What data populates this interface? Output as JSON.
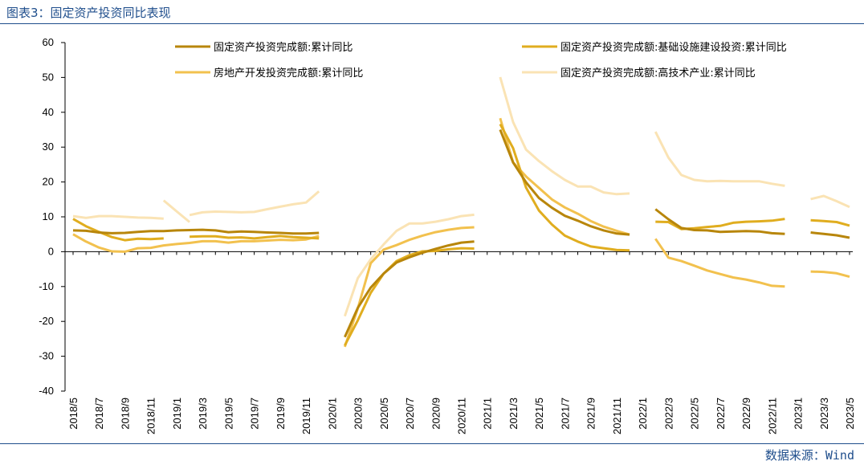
{
  "header": {
    "title": "图表3：固定资产投资同比表现"
  },
  "footer": {
    "source": "数据来源：Wind"
  },
  "chart_data": {
    "type": "line",
    "ylim": [
      -40,
      60
    ],
    "yticks": [
      -40,
      -30,
      -20,
      -10,
      0,
      10,
      20,
      30,
      40,
      50,
      60
    ],
    "x": [
      "2018/5",
      "2018/6",
      "2018/7",
      "2018/8",
      "2018/9",
      "2018/10",
      "2018/11",
      "2018/12",
      "2019/1",
      "2019/2",
      "2019/3",
      "2019/4",
      "2019/5",
      "2019/6",
      "2019/7",
      "2019/8",
      "2019/9",
      "2019/10",
      "2019/11",
      "2019/12",
      "2020/1",
      "2020/2",
      "2020/3",
      "2020/4",
      "2020/5",
      "2020/6",
      "2020/7",
      "2020/8",
      "2020/9",
      "2020/10",
      "2020/11",
      "2020/12",
      "2021/1",
      "2021/2",
      "2021/3",
      "2021/4",
      "2021/5",
      "2021/6",
      "2021/7",
      "2021/8",
      "2021/9",
      "2021/10",
      "2021/11",
      "2021/12",
      "2022/1",
      "2022/2",
      "2022/3",
      "2022/4",
      "2022/5",
      "2022/6",
      "2022/7",
      "2022/8",
      "2022/9",
      "2022/10",
      "2022/11",
      "2022/12",
      "2023/1",
      "2023/2",
      "2023/3",
      "2023/4",
      "2023/5"
    ],
    "xtick_labels": [
      "2018/5",
      "2018/7",
      "2018/9",
      "2018/11",
      "2019/1",
      "2019/3",
      "2019/5",
      "2019/7",
      "2019/9",
      "2019/11",
      "2020/1",
      "2020/3",
      "2020/5",
      "2020/7",
      "2020/9",
      "2020/11",
      "2021/1",
      "2021/3",
      "2021/5",
      "2021/7",
      "2021/9",
      "2021/11",
      "2022/1",
      "2022/3",
      "2022/5",
      "2022/7",
      "2022/9",
      "2022/11",
      "2023/1",
      "2023/3",
      "2023/5"
    ],
    "series": [
      {
        "name": "固定资产投资完成额:累计同比",
        "color": "#b8860b",
        "width": 3,
        "values": [
          6.1,
          6.0,
          5.5,
          5.3,
          5.4,
          5.7,
          5.9,
          5.9,
          6.1,
          6.2,
          6.3,
          6.1,
          5.6,
          5.8,
          5.7,
          5.5,
          5.4,
          5.2,
          5.2,
          5.4,
          null,
          -24.5,
          -16.1,
          -10.3,
          -6.3,
          -3.1,
          -1.6,
          -0.3,
          0.8,
          1.8,
          2.6,
          2.9,
          null,
          35.0,
          25.6,
          19.9,
          15.4,
          12.6,
          10.3,
          8.9,
          7.3,
          6.1,
          5.2,
          4.9,
          null,
          12.2,
          9.3,
          6.8,
          6.2,
          6.1,
          5.7,
          5.8,
          5.9,
          5.8,
          5.3,
          5.1,
          null,
          5.5,
          5.1,
          4.7,
          4.0
        ]
      },
      {
        "name": "固定资产投资完成额:基础设施建设投资:累计同比",
        "color": "#e0ad1f",
        "width": 3,
        "values": [
          9.4,
          7.3,
          5.7,
          4.2,
          3.3,
          3.7,
          3.6,
          3.8,
          null,
          4.3,
          4.4,
          4.4,
          4.0,
          4.1,
          3.8,
          4.2,
          4.5,
          4.2,
          4.0,
          3.8,
          null,
          -26.9,
          -19.7,
          -11.8,
          -6.3,
          -2.7,
          -1.0,
          0.1,
          0.2,
          0.7,
          1.0,
          0.9,
          null,
          36.6,
          29.7,
          18.4,
          11.8,
          7.8,
          4.6,
          2.9,
          1.5,
          1.0,
          0.5,
          0.4,
          null,
          8.6,
          8.5,
          6.5,
          6.7,
          7.1,
          7.4,
          8.3,
          8.6,
          8.7,
          8.9,
          9.4,
          null,
          9.0,
          8.8,
          8.5,
          7.5
        ]
      },
      {
        "name": "房地产开发投资完成额:累计同比",
        "color": "#f2c14e",
        "width": 3,
        "values": [
          5.0,
          2.9,
          1.2,
          0.1,
          0.0,
          1.0,
          1.1,
          1.8,
          2.2,
          2.5,
          3.0,
          3.0,
          2.6,
          3.0,
          3.0,
          3.2,
          3.4,
          3.3,
          3.5,
          4.5,
          null,
          -27.3,
          -16.3,
          -3.3,
          0.6,
          1.9,
          3.4,
          4.6,
          5.6,
          6.3,
          6.8,
          7.0,
          null,
          38.3,
          25.6,
          21.6,
          18.3,
          15.0,
          12.7,
          10.9,
          8.8,
          7.2,
          6.0,
          4.9,
          null,
          3.7,
          -1.7,
          -2.7,
          -4.0,
          -5.4,
          -6.4,
          -7.4,
          -8.0,
          -8.8,
          -9.8,
          -10.0,
          null,
          -5.7,
          -5.8,
          -6.2,
          -7.2
        ]
      },
      {
        "name": "固定资产投资完成额:高技术产业:累计同比",
        "color": "#fae3b4",
        "width": 3,
        "values": [
          10.2,
          9.7,
          10.2,
          10.2,
          10.0,
          9.8,
          9.7,
          9.5,
          null,
          10.5,
          11.3,
          11.5,
          11.4,
          11.3,
          11.4,
          12.2,
          12.9,
          13.6,
          14.1,
          17.3,
          null,
          -18.5,
          -7.6,
          -2.2,
          2.1,
          6.0,
          8.1,
          8.1,
          8.6,
          9.3,
          10.2,
          10.6,
          null,
          50.1,
          37.2,
          29.3,
          26.0,
          23.1,
          20.6,
          18.7,
          18.7,
          17.0,
          16.5,
          16.7,
          null,
          34.4,
          27.0,
          22.0,
          20.6,
          20.2,
          20.3,
          20.2,
          20.2,
          20.2,
          19.5,
          18.9,
          null,
          15.1,
          16.0,
          14.5,
          12.8
        ]
      },
      {
        "name": "",
        "color": "#fae3b4",
        "width": 3,
        "values": [
          null,
          null,
          null,
          null,
          null,
          null,
          null,
          14.7,
          11.6,
          8.5,
          null,
          null,
          null,
          null,
          null,
          null,
          null,
          null,
          null,
          null,
          null,
          null,
          null,
          null,
          null,
          null,
          null,
          null,
          null,
          null,
          null,
          null,
          null,
          null,
          null,
          null,
          null,
          null,
          null,
          null,
          null,
          null,
          null,
          null,
          null,
          null,
          null,
          null,
          null,
          null,
          null,
          null,
          null,
          null,
          null,
          null,
          null,
          null,
          null,
          null,
          null
        ]
      }
    ],
    "legend": [
      {
        "label": "固定资产投资完成额:累计同比",
        "color": "#b8860b"
      },
      {
        "label": "固定资产投资完成额:基础设施建设投资:累计同比",
        "color": "#e0ad1f"
      },
      {
        "label": "房地产开发投资完成额:累计同比",
        "color": "#f2c14e"
      },
      {
        "label": "固定资产投资完成额:高技术产业:累计同比",
        "color": "#fae3b4"
      }
    ],
    "legend_position": "top"
  }
}
